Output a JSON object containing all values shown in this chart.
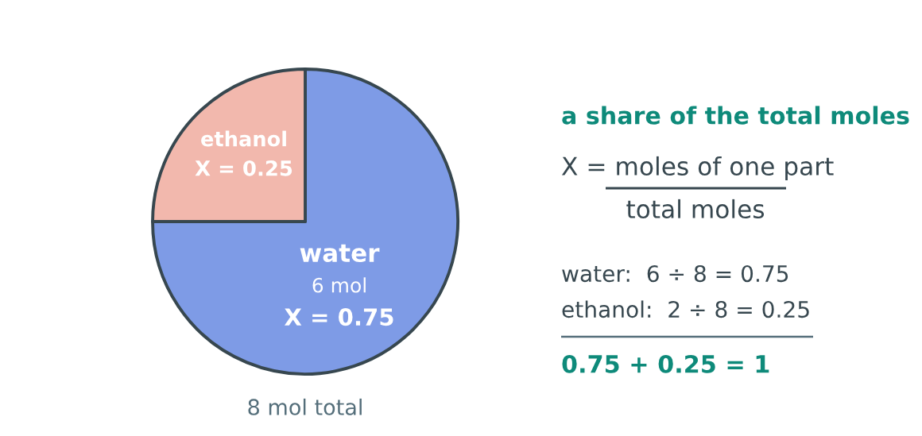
{
  "chart_data": {
    "type": "pie",
    "categories": [
      "water",
      "ethanol"
    ],
    "values": [
      0.75,
      0.25
    ],
    "colors": [
      "#7e9be6",
      "#f2b8ad"
    ],
    "value_labels": [
      "X = 0.75",
      "X = 0.25"
    ],
    "annotations": [
      {
        "text": "6 mol",
        "x": "water"
      },
      "a share of the total moles",
      "X = moles of one part",
      "total moles",
      "water:  6 ÷ 8 = 0.75",
      "ethanol:  2 ÷ 8 = 0.25",
      "0.75 + 0.25 = 1",
      "8 mol total"
    ]
  }
}
